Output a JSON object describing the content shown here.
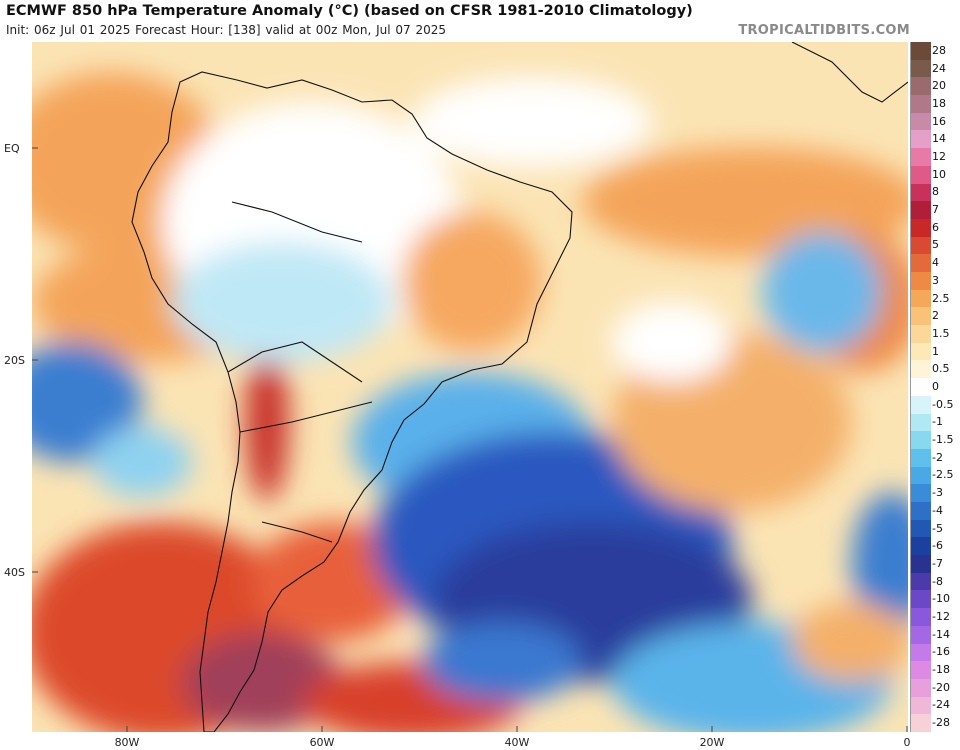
{
  "header": {
    "title": "ECMWF 850 hPa Temperature Anomaly (°C) (based on CFSR 1981-2010 Climatology)",
    "subtitle": "Init: 06z Jul 01 2025   Forecast Hour: [138]   valid at 00z Mon, Jul 07 2025",
    "watermark": "TROPICALTIDBITS.COM"
  },
  "axes": {
    "lat_labels": [
      "EQ",
      "20S",
      "40S"
    ],
    "lon_labels": [
      "80W",
      "60W",
      "40W",
      "20W",
      "0"
    ]
  },
  "colorbar": {
    "labels": [
      "28",
      "24",
      "20",
      "18",
      "16",
      "14",
      "12",
      "10",
      "8",
      "7",
      "6",
      "5",
      "4",
      "3",
      "2.5",
      "2",
      "1.5",
      "1",
      "0.5",
      "0",
      "-0.5",
      "-1",
      "-1.5",
      "-2",
      "-2.5",
      "-3",
      "-4",
      "-5",
      "-6",
      "-7",
      "-8",
      "-10",
      "-12",
      "-14",
      "-16",
      "-18",
      "-20",
      "-24",
      "-28"
    ],
    "colors": [
      "#6b4a3a",
      "#7a5a4a",
      "#9a6a6e",
      "#b07888",
      "#c88aa8",
      "#e4a0c8",
      "#e87aa8",
      "#e05a88",
      "#c8325a",
      "#b01e3a",
      "#c82828",
      "#d84a32",
      "#e46a3c",
      "#ee8a44",
      "#f4a85a",
      "#f8c278",
      "#fbd89a",
      "#fde8b8",
      "#fff4d8",
      "#ffffff",
      "#d8f4f8",
      "#b0e8f4",
      "#88d8f0",
      "#60c0ec",
      "#4aa8e4",
      "#3a8cd8",
      "#2c70c8",
      "#2058b4",
      "#1c40a0",
      "#2a3290",
      "#4a3aaa",
      "#6a48c8",
      "#8a58dc",
      "#a468e4",
      "#c47ae8",
      "#dc8ae4",
      "#e8a0dc",
      "#f0b8d8",
      "#f8d0d8"
    ],
    "zero_index": 19
  },
  "map_colors": {
    "warm_light": "#fdeac0",
    "warm_mid": "#f6b26a",
    "warm_strong": "#e0562e",
    "hot": "#c83a3a",
    "very_hot": "#a8405a",
    "cool_light": "#bfe8f6",
    "cool_mid": "#5ab4ea",
    "cool_strong": "#2a5cc0",
    "cold": "#2848a8",
    "land_line": "#111111"
  }
}
